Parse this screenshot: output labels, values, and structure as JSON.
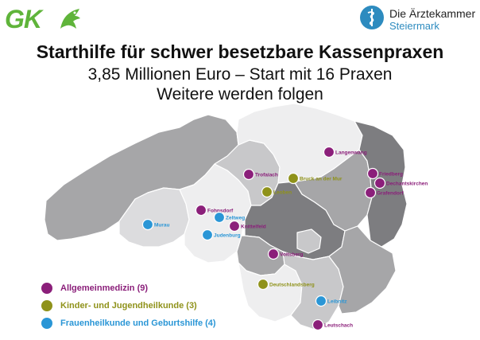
{
  "header": {
    "left_logo": {
      "text": "GK",
      "icon": "styrian-panther-logo-icon"
    },
    "right_logo": {
      "line1": "Die Ärztekammer",
      "line2": "Steiermark",
      "icon": "aesculapian-staff-icon"
    },
    "title": "Starthilfe für schwer besetzbare Kassenpraxen",
    "subtitle1": "3,85 Millionen Euro – Start mit 16 Praxen",
    "subtitle2": "Weitere werden folgen"
  },
  "colors": {
    "allgemeinmedizin": "#8b1f7a",
    "kinder": "#8f921a",
    "frauenheilkunde": "#2a96d6",
    "region_dark": "#7d7d80",
    "region_mid": "#a6a6a8",
    "region_light": "#c8c8ca",
    "region_lighter": "#dcdcde",
    "region_white": "#eeeeef"
  },
  "legend": [
    {
      "key": "allgemeinmedizin",
      "label": "Allgemeinmedizin (9)"
    },
    {
      "key": "kinder",
      "label": "Kinder- und Jugendheilkunde (3)"
    },
    {
      "key": "frauenheilkunde",
      "label": "Frauenheilkunde und Geburtshilfe (4)"
    }
  ],
  "locations": [
    {
      "name": "Langenwang",
      "category": "allgemeinmedizin"
    },
    {
      "name": "Friedberg",
      "category": "allgemeinmedizin"
    },
    {
      "name": "Dechantskirchen",
      "category": "allgemeinmedizin"
    },
    {
      "name": "Grafendorf",
      "category": "allgemeinmedizin"
    },
    {
      "name": "Trofaiach",
      "category": "allgemeinmedizin"
    },
    {
      "name": "Bruck an der Mur",
      "category": "kinder"
    },
    {
      "name": "Leoben",
      "category": "kinder"
    },
    {
      "name": "Fohnsdorf",
      "category": "allgemeinmedizin"
    },
    {
      "name": "Zeltweg",
      "category": "frauenheilkunde"
    },
    {
      "name": "Murau",
      "category": "frauenheilkunde"
    },
    {
      "name": "Knittelfeld",
      "category": "allgemeinmedizin"
    },
    {
      "name": "Judenburg",
      "category": "frauenheilkunde"
    },
    {
      "name": "Voitsberg",
      "category": "allgemeinmedizin"
    },
    {
      "name": "Deutschlandsberg",
      "category": "kinder"
    },
    {
      "name": "Leibnitz",
      "category": "frauenheilkunde"
    },
    {
      "name": "Leutschach",
      "category": "allgemeinmedizin"
    }
  ]
}
